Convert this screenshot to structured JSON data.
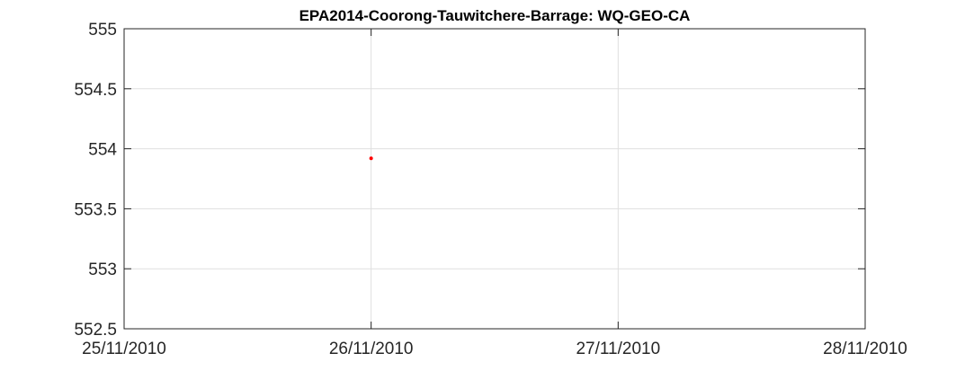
{
  "chart_data": {
    "type": "scatter",
    "title": "EPA2014-Coorong-Tauwitchere-Barrage: WQ-GEO-CA",
    "xlabel": "",
    "ylabel": "",
    "x_ticks": [
      "25/11/2010",
      "26/11/2010",
      "27/11/2010",
      "28/11/2010"
    ],
    "y_ticks": [
      "552.5",
      "553",
      "553.5",
      "554",
      "554.5",
      "555"
    ],
    "xlim": [
      "25/11/2010",
      "28/11/2010"
    ],
    "ylim": [
      552.5,
      555
    ],
    "grid": true,
    "series": [
      {
        "color": "#ff0000",
        "points": [
          {
            "x": "26/11/2010",
            "y": 553.92
          }
        ]
      }
    ]
  }
}
